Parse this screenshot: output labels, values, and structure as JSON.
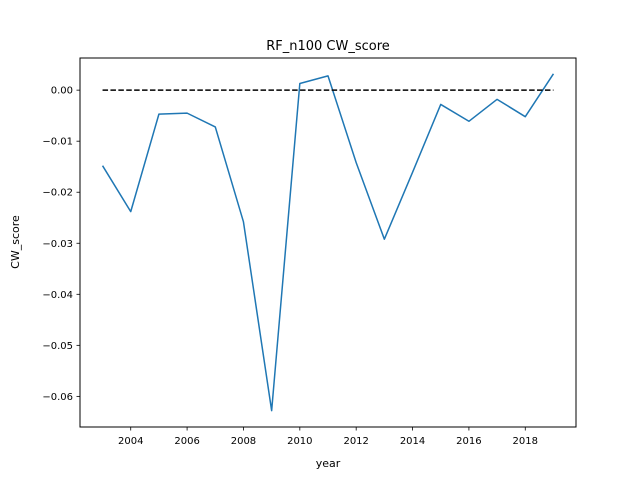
{
  "chart_data": {
    "type": "line",
    "title": "RF_n100 CW_score",
    "xlabel": "year",
    "ylabel": "CW_score",
    "xlim": [
      2002.2,
      2019.8
    ],
    "ylim": [
      -0.066,
      0.0063
    ],
    "xticks": [
      2004,
      2006,
      2008,
      2010,
      2012,
      2014,
      2016,
      2018
    ],
    "xtick_labels": [
      "2004",
      "2006",
      "2008",
      "2010",
      "2012",
      "2014",
      "2016",
      "2018"
    ],
    "yticks": [
      0.0,
      -0.01,
      -0.02,
      -0.03,
      -0.04,
      -0.05,
      -0.06
    ],
    "ytick_labels": [
      "0.00",
      "−0.01",
      "−0.02",
      "−0.03",
      "−0.04",
      "−0.05",
      "−0.06"
    ],
    "grid": false,
    "series": [
      {
        "color": "#1f77b4",
        "style": "solid",
        "x": [
          2003,
          2004,
          2005,
          2006,
          2007,
          2008,
          2009,
          2010,
          2011,
          2012,
          2013,
          2014,
          2015,
          2016,
          2017,
          2018,
          2019
        ],
        "y": [
          -0.0148,
          -0.0238,
          -0.0047,
          -0.0045,
          -0.0072,
          -0.0258,
          -0.0628,
          0.0013,
          0.0028,
          -0.0142,
          -0.0292,
          -0.0161,
          -0.0028,
          -0.0061,
          -0.0018,
          -0.0052,
          0.0032
        ]
      },
      {
        "color": "#000000",
        "style": "dashed",
        "x": [
          2003,
          2019
        ],
        "y": [
          0.0,
          0.0
        ]
      }
    ]
  }
}
